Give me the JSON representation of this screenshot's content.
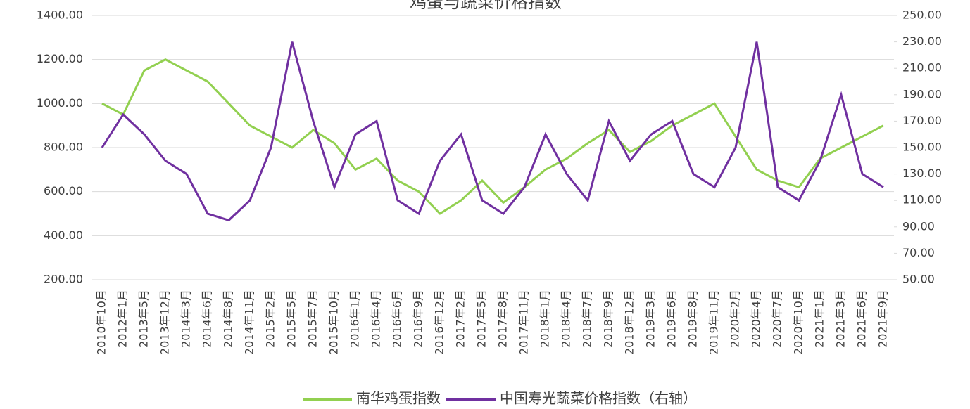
{
  "chart_data": {
    "type": "line",
    "title": "鸡蛋与蔬菜价格指数",
    "categories": [
      "2010年10月",
      "2012年1月",
      "2013年5月",
      "2013年12月",
      "2014年3月",
      "2014年6月",
      "2014年8月",
      "2014年11月",
      "2015年2月",
      "2015年5月",
      "2015年7月",
      "2015年10月",
      "2016年1月",
      "2016年4月",
      "2016年6月",
      "2016年9月",
      "2016年12月",
      "2017年2月",
      "2017年5月",
      "2017年8月",
      "2017年11月",
      "2018年1月",
      "2018年4月",
      "2018年7月",
      "2018年9月",
      "2018年12月",
      "2019年3月",
      "2019年6月",
      "2019年8月",
      "2019年11月",
      "2020年2月",
      "2020年4月",
      "2020年7月",
      "2020年10月",
      "2021年1月",
      "2021年3月",
      "2021年6月",
      "2021年9月"
    ],
    "series": [
      {
        "name": "南华鸡蛋指数",
        "color": "#92d050",
        "values": [
          1000,
          950,
          1150,
          1200,
          1150,
          1100,
          1000,
          900,
          850,
          800,
          880,
          820,
          700,
          750,
          650,
          600,
          500,
          560,
          650,
          550,
          620,
          700,
          750,
          820,
          880,
          780,
          830,
          900,
          950,
          1000,
          850,
          700,
          650,
          620,
          750,
          800,
          850,
          900
        ]
      },
      {
        "name": "中国寿光蔬菜价格指数（右轴）",
        "color": "#7030a0",
        "axis": "y2",
        "values": [
          150,
          175,
          160,
          140,
          130,
          100,
          95,
          110,
          150,
          230,
          170,
          120,
          160,
          170,
          110,
          100,
          140,
          160,
          110,
          100,
          120,
          160,
          130,
          110,
          170,
          140,
          160,
          170,
          130,
          120,
          150,
          230,
          120,
          110,
          140,
          190,
          130,
          120
        ]
      }
    ],
    "ylim": [
      200,
      1400
    ],
    "yticks": [
      {
        "value": 200,
        "label": "200.00"
      },
      {
        "value": 400,
        "label": "400.00"
      },
      {
        "value": 600,
        "label": "600.00"
      },
      {
        "value": 800,
        "label": "800.00"
      },
      {
        "value": 1000,
        "label": "1000.00"
      },
      {
        "value": 1200,
        "label": "1200.00"
      },
      {
        "value": 1400,
        "label": "1400.00"
      }
    ],
    "y2lim": [
      50,
      250
    ],
    "y2ticks": [
      {
        "value": 50,
        "label": "50.00"
      },
      {
        "value": 70,
        "label": "70.00"
      },
      {
        "value": 90,
        "label": "90.00"
      },
      {
        "value": 110,
        "label": "110.00"
      },
      {
        "value": 130,
        "label": "130.00"
      },
      {
        "value": 150,
        "label": "150.00"
      },
      {
        "value": 170,
        "label": "170.00"
      },
      {
        "value": 190,
        "label": "190.00"
      },
      {
        "value": 210,
        "label": "210.00"
      },
      {
        "value": 230,
        "label": "230.00"
      },
      {
        "value": 250,
        "label": "250.00"
      }
    ],
    "grid": true,
    "legend": "bottom"
  }
}
